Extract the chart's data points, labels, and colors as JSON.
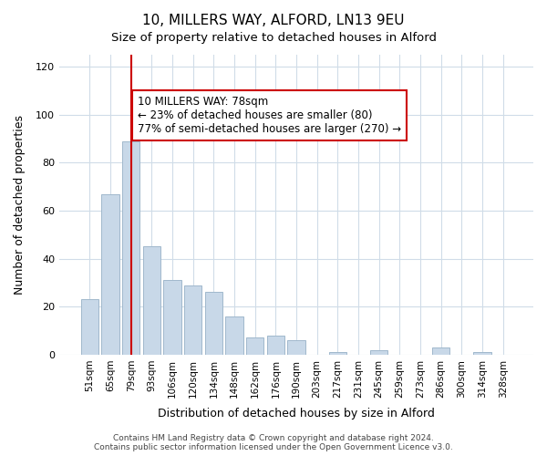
{
  "title": "10, MILLERS WAY, ALFORD, LN13 9EU",
  "subtitle": "Size of property relative to detached houses in Alford",
  "xlabel": "Distribution of detached houses by size in Alford",
  "ylabel": "Number of detached properties",
  "bar_color": "#c8d8e8",
  "bar_edge_color": "#a0b8cc",
  "marker_line_color": "#cc0000",
  "categories": [
    "51sqm",
    "65sqm",
    "79sqm",
    "93sqm",
    "106sqm",
    "120sqm",
    "134sqm",
    "148sqm",
    "162sqm",
    "176sqm",
    "190sqm",
    "203sqm",
    "217sqm",
    "231sqm",
    "245sqm",
    "259sqm",
    "273sqm",
    "286sqm",
    "300sqm",
    "314sqm",
    "328sqm"
  ],
  "values": [
    23,
    67,
    89,
    45,
    31,
    29,
    26,
    16,
    7,
    8,
    6,
    0,
    1,
    0,
    2,
    0,
    0,
    3,
    0,
    1,
    0
  ],
  "marker_index": 2,
  "annotation_title": "10 MILLERS WAY: 78sqm",
  "annotation_line1": "← 23% of detached houses are smaller (80)",
  "annotation_line2": "77% of semi-detached houses are larger (270) →",
  "annotation_box_color": "#ffffff",
  "annotation_box_edge_color": "#cc0000",
  "ylim": [
    0,
    125
  ],
  "yticks": [
    0,
    20,
    40,
    60,
    80,
    100,
    120
  ],
  "footer1": "Contains HM Land Registry data © Crown copyright and database right 2024.",
  "footer2": "Contains public sector information licensed under the Open Government Licence v3.0.",
  "bg_color": "#ffffff",
  "grid_color": "#d0dce8"
}
